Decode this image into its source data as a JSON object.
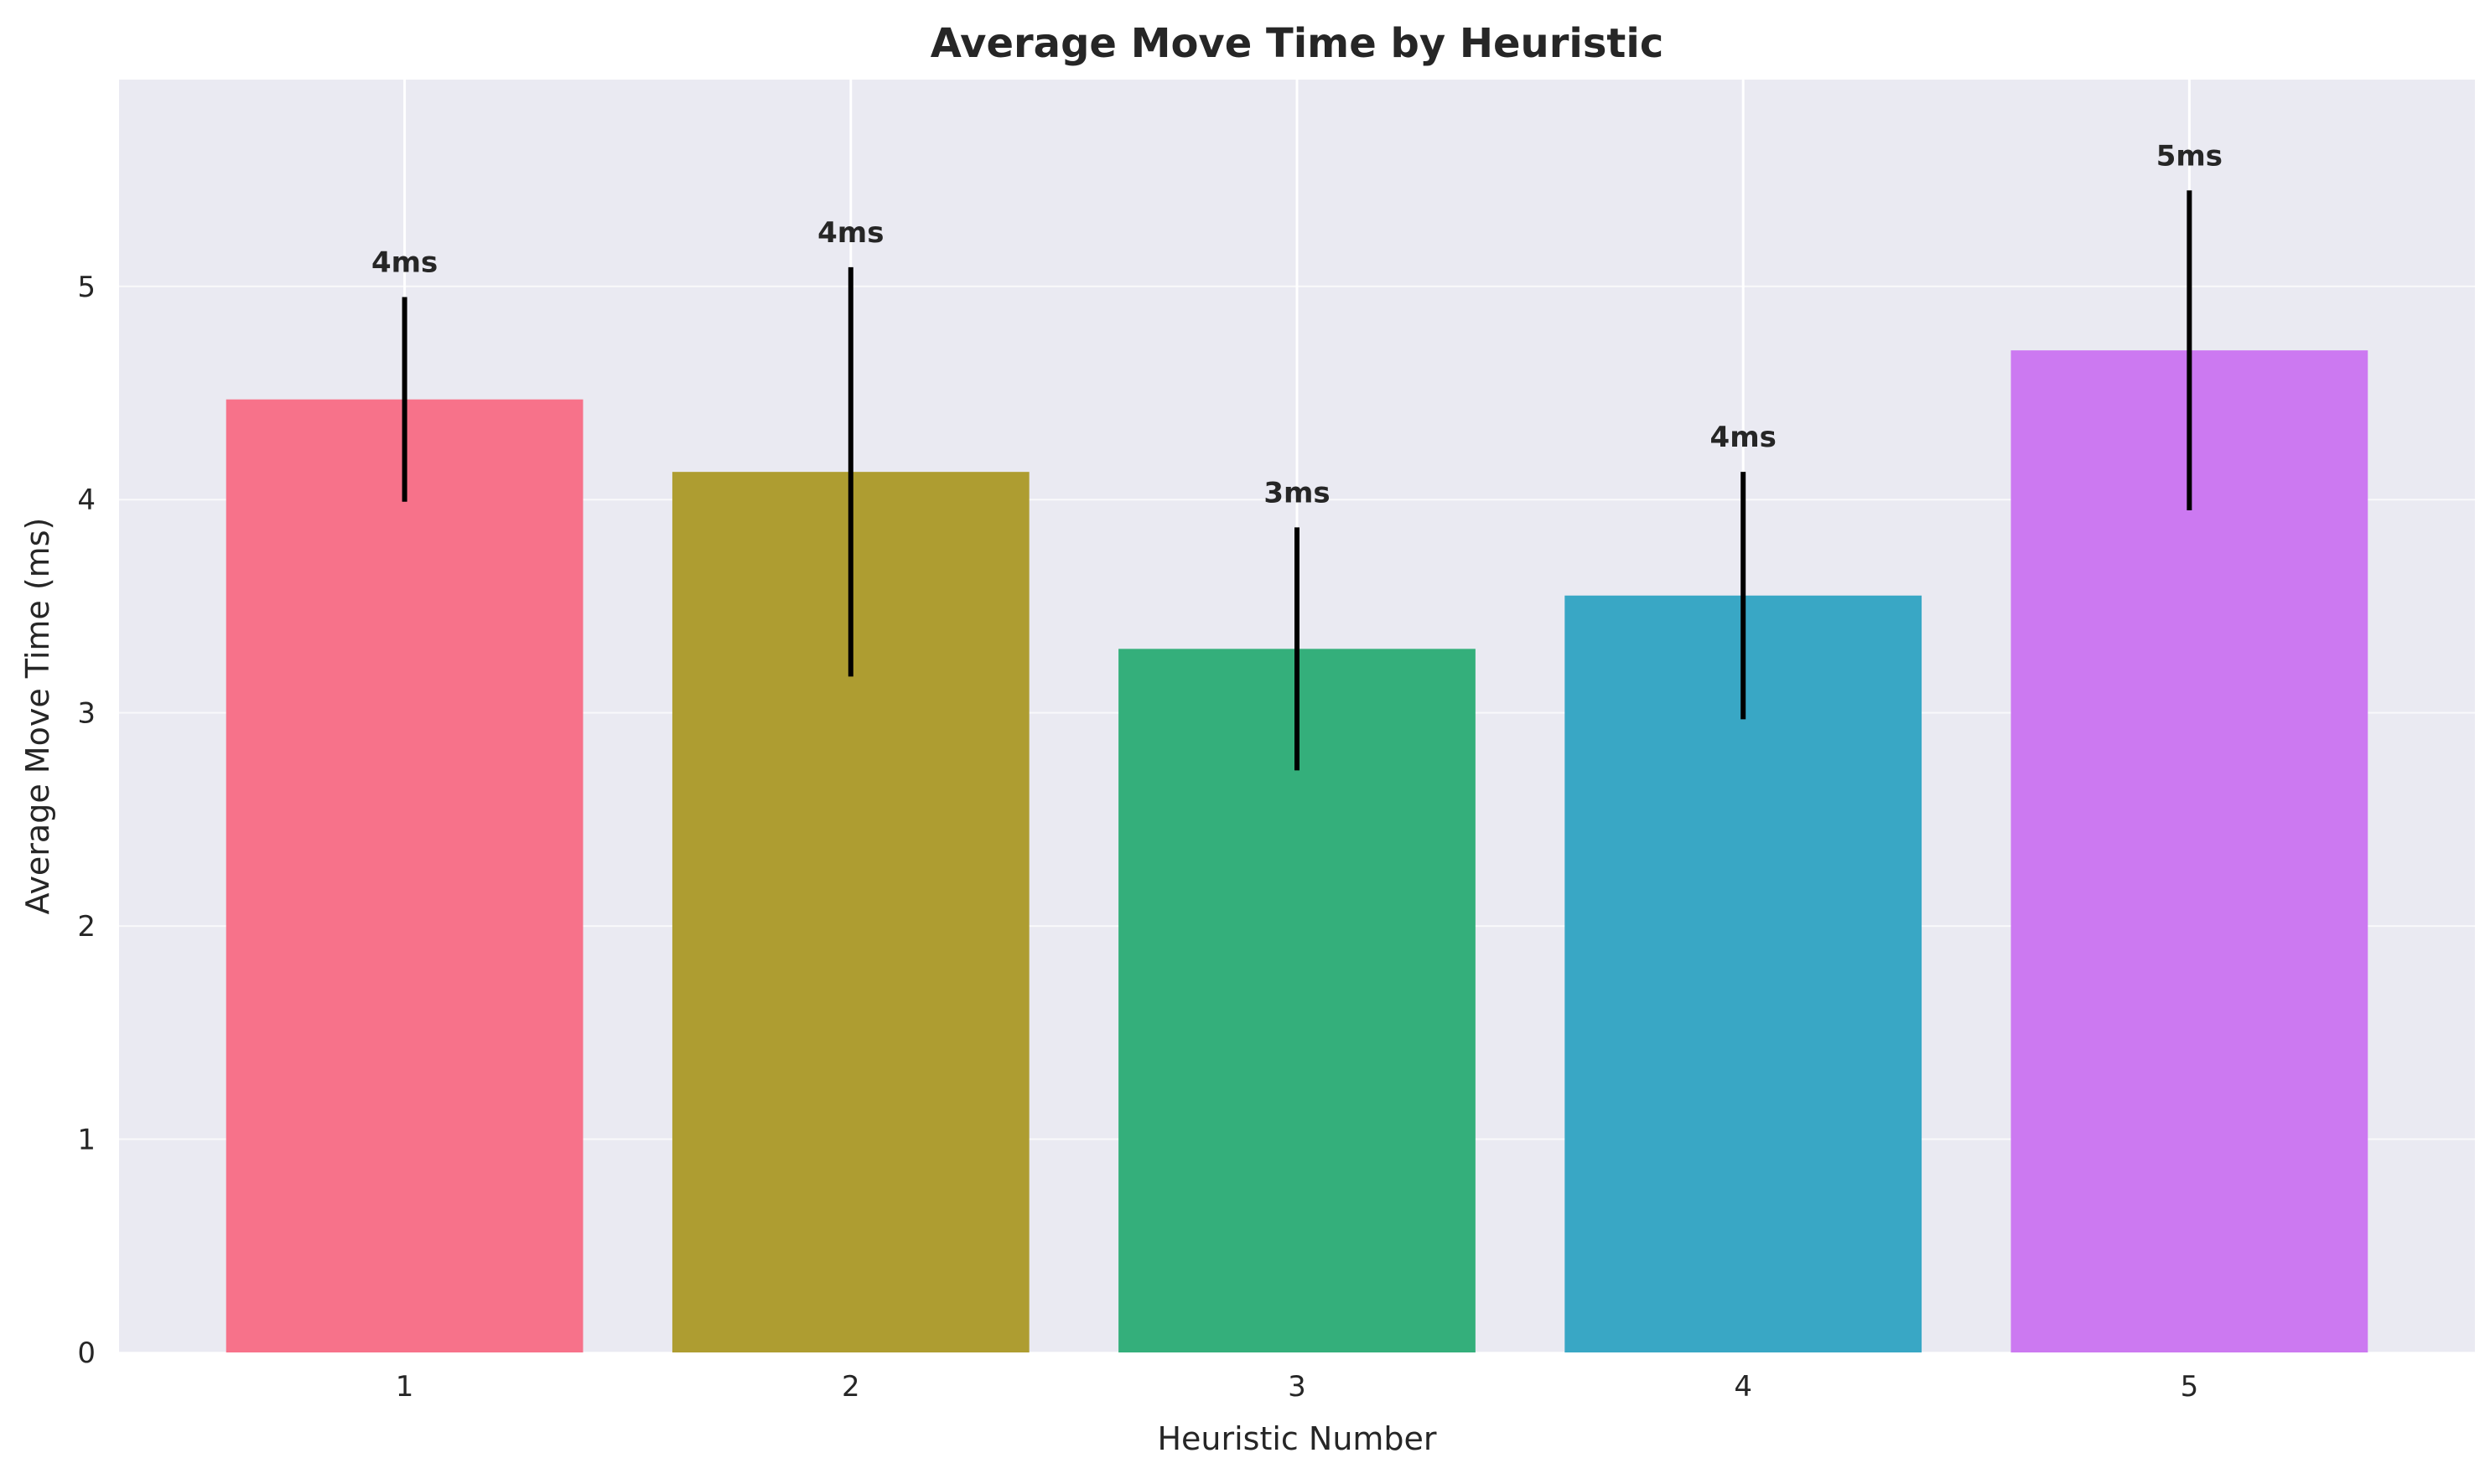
{
  "chart_data": {
    "type": "bar",
    "title": "Average Move Time by Heuristic",
    "xlabel": "Heuristic Number",
    "ylabel": "Average Move Time (ms)",
    "categories": [
      "1",
      "2",
      "3",
      "4",
      "5"
    ],
    "values": [
      4.47,
      4.13,
      3.3,
      3.55,
      4.7
    ],
    "errors": [
      0.48,
      0.96,
      0.57,
      0.58,
      0.75
    ],
    "value_labels": [
      "4ms",
      "4ms",
      "3ms",
      "4ms",
      "5ms"
    ],
    "colors": [
      "#f7728a",
      "#ae9d31",
      "#34af7b",
      "#39a7c5",
      "#cc79f1"
    ],
    "error_color": "#000000",
    "ylim": [
      0,
      5.97
    ],
    "yticks": [
      0,
      1,
      2,
      3,
      4,
      5
    ],
    "grid": true,
    "background": "#eaeaf2",
    "grid_color": "#ffffff"
  }
}
